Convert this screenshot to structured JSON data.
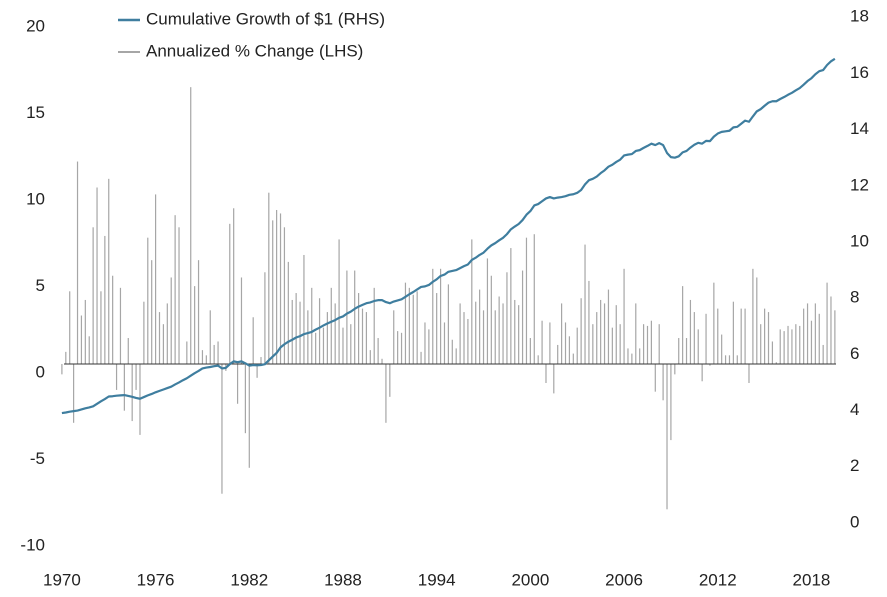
{
  "chart_data": {
    "type": "combo",
    "x": [
      1970,
      1970.25,
      1970.5,
      1970.75,
      1971,
      1971.25,
      1971.5,
      1971.75,
      1972,
      1972.25,
      1972.5,
      1972.75,
      1973,
      1973.25,
      1973.5,
      1973.75,
      1974,
      1974.25,
      1974.5,
      1974.75,
      1975,
      1975.25,
      1975.5,
      1975.75,
      1976,
      1976.25,
      1976.5,
      1976.75,
      1977,
      1977.25,
      1977.5,
      1977.75,
      1978,
      1978.25,
      1978.5,
      1978.75,
      1979,
      1979.25,
      1979.5,
      1979.75,
      1980,
      1980.25,
      1980.5,
      1980.75,
      1981,
      1981.25,
      1981.5,
      1981.75,
      1982,
      1982.25,
      1982.5,
      1982.75,
      1983,
      1983.25,
      1983.5,
      1983.75,
      1984,
      1984.25,
      1984.5,
      1984.75,
      1985,
      1985.25,
      1985.5,
      1985.75,
      1986,
      1986.25,
      1986.5,
      1986.75,
      1987,
      1987.25,
      1987.5,
      1987.75,
      1988,
      1988.25,
      1988.5,
      1988.75,
      1989,
      1989.25,
      1989.5,
      1989.75,
      1990,
      1990.25,
      1990.5,
      1990.75,
      1991,
      1991.25,
      1991.5,
      1991.75,
      1992,
      1992.25,
      1992.5,
      1992.75,
      1993,
      1993.25,
      1993.5,
      1993.75,
      1994,
      1994.25,
      1994.5,
      1994.75,
      1995,
      1995.25,
      1995.5,
      1995.75,
      1996,
      1996.25,
      1996.5,
      1996.75,
      1997,
      1997.25,
      1997.5,
      1997.75,
      1998,
      1998.25,
      1998.5,
      1998.75,
      1999,
      1999.25,
      1999.5,
      1999.75,
      2000,
      2000.25,
      2000.5,
      2000.75,
      2001,
      2001.25,
      2001.5,
      2001.75,
      2002,
      2002.25,
      2002.5,
      2002.75,
      2003,
      2003.25,
      2003.5,
      2003.75,
      2004,
      2004.25,
      2004.5,
      2004.75,
      2005,
      2005.25,
      2005.5,
      2005.75,
      2006,
      2006.25,
      2006.5,
      2006.75,
      2007,
      2007.25,
      2007.5,
      2007.75,
      2008,
      2008.25,
      2008.5,
      2008.75,
      2009,
      2009.25,
      2009.5,
      2009.75,
      2010,
      2010.25,
      2010.5,
      2010.75,
      2011,
      2011.25,
      2011.5,
      2011.75,
      2012,
      2012.25,
      2012.5,
      2012.75,
      2013,
      2013.25,
      2013.5,
      2013.75,
      2014,
      2014.25,
      2014.5,
      2014.75,
      2015,
      2015.25,
      2015.5,
      2015.75,
      2016,
      2016.25,
      2016.5,
      2016.75,
      2017,
      2017.25,
      2017.5,
      2017.75,
      2018,
      2018.25,
      2018.5,
      2018.75,
      2019,
      2019.25,
      2019.5
    ],
    "series": [
      {
        "name": "Cumulative Growth of $1 (RHS)",
        "color": "#3f7e9f",
        "type": "line",
        "axis": "y2",
        "values": [
          3.91,
          3.93,
          3.96,
          3.98,
          4.0,
          4.04,
          4.08,
          4.11,
          4.15,
          4.24,
          4.33,
          4.41,
          4.5,
          4.51,
          4.53,
          4.54,
          4.55,
          4.52,
          4.49,
          4.45,
          4.42,
          4.48,
          4.54,
          4.59,
          4.65,
          4.7,
          4.75,
          4.8,
          4.85,
          4.93,
          5.0,
          5.08,
          5.15,
          5.24,
          5.33,
          5.41,
          5.5,
          5.53,
          5.55,
          5.58,
          5.6,
          5.5,
          5.52,
          5.65,
          5.75,
          5.72,
          5.75,
          5.68,
          5.6,
          5.62,
          5.61,
          5.62,
          5.65,
          5.79,
          5.92,
          6.05,
          6.25,
          6.36,
          6.45,
          6.52,
          6.6,
          6.65,
          6.72,
          6.76,
          6.8,
          6.88,
          6.95,
          7.03,
          7.1,
          7.16,
          7.22,
          7.3,
          7.35,
          7.45,
          7.52,
          7.62,
          7.7,
          7.76,
          7.82,
          7.85,
          7.9,
          7.93,
          7.93,
          7.86,
          7.82,
          7.88,
          7.92,
          7.96,
          8.05,
          8.14,
          8.22,
          8.31,
          8.4,
          8.42,
          8.47,
          8.58,
          8.67,
          8.79,
          8.84,
          8.94,
          8.97,
          9.0,
          9.07,
          9.14,
          9.2,
          9.36,
          9.44,
          9.54,
          9.62,
          9.76,
          9.88,
          9.96,
          10.06,
          10.15,
          10.28,
          10.45,
          10.55,
          10.64,
          10.78,
          10.97,
          11.1,
          11.3,
          11.35,
          11.45,
          11.55,
          11.6,
          11.55,
          11.58,
          11.6,
          11.63,
          11.68,
          11.7,
          11.75,
          11.85,
          12.05,
          12.2,
          12.25,
          12.33,
          12.45,
          12.55,
          12.68,
          12.75,
          12.85,
          12.93,
          13.08,
          13.11,
          13.13,
          13.24,
          13.27,
          13.35,
          13.42,
          13.5,
          13.45,
          13.52,
          13.45,
          13.17,
          13.02,
          13.0,
          13.05,
          13.19,
          13.24,
          13.36,
          13.46,
          13.53,
          13.5,
          13.6,
          13.59,
          13.75,
          13.86,
          13.92,
          13.94,
          13.96,
          14.08,
          14.1,
          14.21,
          14.32,
          14.28,
          14.47,
          14.65,
          14.73,
          14.85,
          14.96,
          15.01,
          15.01,
          15.09,
          15.16,
          15.24,
          15.31,
          15.4,
          15.48,
          15.6,
          15.73,
          15.83,
          15.97,
          16.08,
          16.12,
          16.3,
          16.43,
          16.52
        ]
      },
      {
        "name": "Annualized % Change (LHS)",
        "color": "#a6a6a6",
        "type": "bar",
        "values": [
          -0.6,
          0.7,
          4.2,
          -3.4,
          11.7,
          2.8,
          3.7,
          1.6,
          7.9,
          10.2,
          4.2,
          7.4,
          10.7,
          5.1,
          -1.5,
          4.4,
          -2.7,
          1.5,
          -3.3,
          -1.5,
          -4.1,
          3.6,
          7.3,
          6.0,
          9.8,
          3.0,
          2.3,
          3.5,
          5.0,
          8.6,
          7.9,
          0.0,
          1.3,
          16.0,
          4.5,
          6.0,
          0.8,
          0.5,
          3.1,
          1.1,
          1.3,
          -7.5,
          -0.4,
          8.1,
          9.0,
          -2.3,
          5.0,
          -4.0,
          -6.0,
          2.7,
          -0.8,
          0.4,
          5.3,
          9.9,
          8.3,
          8.9,
          8.7,
          7.9,
          5.9,
          3.7,
          4.1,
          3.6,
          6.3,
          3.1,
          4.4,
          1.8,
          3.8,
          2.1,
          3.0,
          4.4,
          3.5,
          7.2,
          2.1,
          5.4,
          2.3,
          5.4,
          4.1,
          3.2,
          3.0,
          0.8,
          4.4,
          1.5,
          0.3,
          -3.4,
          -1.9,
          3.1,
          1.9,
          1.8,
          4.7,
          4.4,
          4.0,
          4.2,
          0.7,
          2.4,
          2.0,
          5.5,
          4.1,
          5.5,
          2.4,
          4.6,
          1.4,
          0.9,
          3.5,
          3.0,
          2.6,
          7.2,
          3.6,
          4.3,
          3.1,
          6.1,
          5.1,
          3.1,
          3.9,
          3.5,
          5.3,
          6.7,
          3.7,
          3.4,
          5.4,
          7.3,
          1.5,
          7.5,
          0.5,
          2.5,
          -1.1,
          2.4,
          -1.7,
          1.1,
          3.5,
          2.4,
          1.6,
          0.6,
          2.1,
          3.8,
          6.9,
          4.8,
          2.3,
          3.0,
          3.7,
          3.5,
          4.3,
          2.1,
          3.4,
          2.3,
          5.5,
          0.9,
          0.6,
          3.5,
          0.9,
          2.3,
          2.2,
          2.5,
          -1.6,
          2.3,
          -2.1,
          -8.4,
          -4.4,
          -0.6,
          1.5,
          4.5,
          1.5,
          3.7,
          3.0,
          2.0,
          -1.0,
          2.9,
          -0.1,
          4.7,
          3.2,
          1.7,
          0.5,
          0.5,
          3.6,
          0.5,
          3.2,
          3.2,
          -1.1,
          5.5,
          5.0,
          2.3,
          3.2,
          3.0,
          1.3,
          0.1,
          2.0,
          1.9,
          2.2,
          2.0,
          2.3,
          2.2,
          3.2,
          3.5,
          2.5,
          3.5,
          2.9,
          1.1,
          4.7,
          3.9,
          3.1
        ]
      }
    ],
    "xlim": [
      1969.75,
      2019.7
    ],
    "xticks": [
      1970,
      1976,
      1982,
      1988,
      1994,
      2000,
      2006,
      2012,
      2018
    ],
    "ylim": [
      -11.33,
      20.17
    ],
    "yticks": [
      -10,
      -5,
      0,
      5,
      10,
      15,
      20
    ],
    "y2lim": [
      -1.32,
      18.08
    ],
    "y2ticks": [
      0,
      2,
      4,
      6,
      8,
      10,
      12,
      14,
      16,
      18
    ],
    "grid": false,
    "legend": "top-left"
  }
}
